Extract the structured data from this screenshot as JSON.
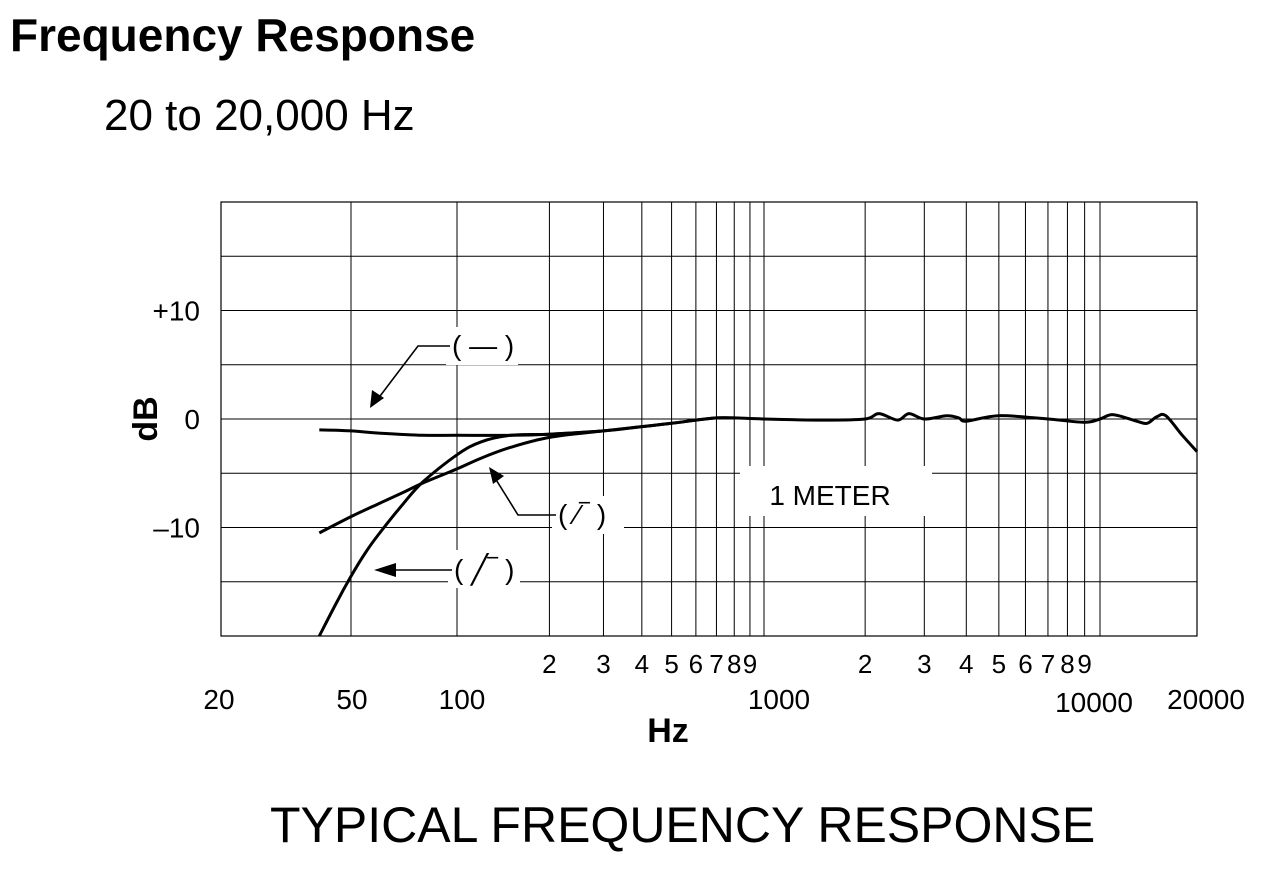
{
  "header": {
    "title": "Frequency Response",
    "range": "20 to 20,000 Hz"
  },
  "footer": {
    "title": "TYPICAL FREQUENCY RESPONSE"
  },
  "chart_data": {
    "type": "line",
    "title": "TYPICAL FREQUENCY RESPONSE",
    "xlabel": "Hz",
    "ylabel": "dB",
    "xscale": "log",
    "xlim": [
      20,
      20000
    ],
    "ylim": [
      -20,
      20
    ],
    "grid": true,
    "major_x_ticks": [
      "20",
      "50",
      "100",
      "1000",
      "10000",
      "20000"
    ],
    "minor_x_ticks": [
      {
        "value": 200,
        "label": "2"
      },
      {
        "value": 300,
        "label": "3"
      },
      {
        "value": 400,
        "label": "4"
      },
      {
        "value": 500,
        "label": "5"
      },
      {
        "value": 600,
        "label": "6"
      },
      {
        "value": 700,
        "label": "7"
      },
      {
        "value": 800,
        "label": "8"
      },
      {
        "value": 900,
        "label": "9"
      },
      {
        "value": 2000,
        "label": "2"
      },
      {
        "value": 3000,
        "label": "3"
      },
      {
        "value": 4000,
        "label": "4"
      },
      {
        "value": 5000,
        "label": "5"
      },
      {
        "value": 6000,
        "label": "6"
      },
      {
        "value": 7000,
        "label": "7"
      },
      {
        "value": 8000,
        "label": "8"
      },
      {
        "value": 9000,
        "label": "9"
      }
    ],
    "y_ticks": [
      {
        "value": 10,
        "label": "+10"
      },
      {
        "value": 0,
        "label": "0"
      },
      {
        "value": -10,
        "label": "–10"
      }
    ],
    "annotation": "1 METER",
    "series": [
      {
        "name": "( — )",
        "x": [
          40,
          50,
          60,
          80,
          100,
          150,
          200,
          300,
          400,
          500,
          600,
          700,
          800,
          1000,
          1500,
          2000,
          2200,
          2500,
          2700,
          3000,
          3500,
          3800,
          4000,
          5000,
          7000,
          9000,
          10000,
          11000,
          13000,
          14000,
          15000,
          16000,
          18000,
          20000
        ],
        "y": [
          -1.0,
          -1.1,
          -1.3,
          -1.5,
          -1.5,
          -1.5,
          -1.4,
          -1.1,
          -0.7,
          -0.4,
          -0.1,
          0.1,
          0.1,
          0.0,
          -0.1,
          0.0,
          0.5,
          -0.1,
          0.5,
          0.0,
          0.3,
          0.1,
          -0.2,
          0.3,
          0.0,
          -0.3,
          0.0,
          0.4,
          -0.2,
          -0.4,
          0.2,
          0.3,
          -1.5,
          -3.0
        ]
      },
      {
        "name": "( ⁄‾ )",
        "x": [
          40,
          50,
          60,
          70,
          80,
          100,
          120,
          150,
          200,
          300,
          400,
          500,
          600,
          700,
          800
        ],
        "y": [
          -10.5,
          -9.0,
          -7.8,
          -6.8,
          -5.9,
          -4.6,
          -3.6,
          -2.6,
          -1.7,
          -1.1,
          -0.7,
          -0.4,
          -0.1,
          0.1,
          0.1
        ]
      },
      {
        "name": "( ╱‾ )",
        "x": [
          40,
          45,
          50,
          55,
          60,
          70,
          80,
          100,
          120,
          150,
          200,
          300
        ],
        "y": [
          -20.0,
          -17.0,
          -14.5,
          -12.3,
          -10.6,
          -7.9,
          -5.8,
          -3.3,
          -2.1,
          -1.5,
          -1.4,
          -1.1
        ]
      }
    ]
  }
}
